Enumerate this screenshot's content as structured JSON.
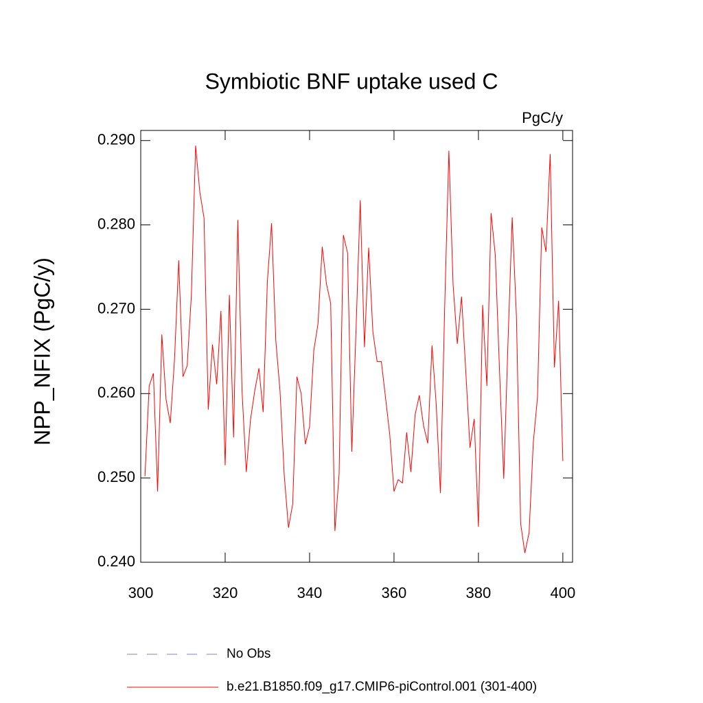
{
  "chart_data": {
    "type": "line",
    "title": "Symbiotic BNF uptake used C",
    "units": "PgC/y",
    "y_label": "NPP_NFIX  (PgC/y)",
    "x": [
      301,
      302,
      303,
      304,
      305,
      306,
      307,
      308,
      309,
      310,
      311,
      312,
      313,
      314,
      315,
      316,
      317,
      318,
      319,
      320,
      321,
      322,
      323,
      324,
      325,
      326,
      327,
      328,
      329,
      330,
      331,
      332,
      333,
      334,
      335,
      336,
      337,
      338,
      339,
      340,
      341,
      342,
      343,
      344,
      345,
      346,
      347,
      348,
      349,
      350,
      351,
      352,
      353,
      354,
      355,
      356,
      357,
      358,
      359,
      360,
      361,
      362,
      363,
      364,
      365,
      366,
      367,
      368,
      369,
      370,
      371,
      372,
      373,
      374,
      375,
      376,
      377,
      378,
      379,
      380,
      381,
      382,
      383,
      384,
      385,
      386,
      387,
      388,
      389,
      390,
      391,
      392,
      393,
      394,
      395,
      396,
      397,
      398,
      399,
      400
    ],
    "series": [
      {
        "name": "b.e21.B1850.f09_g17.CMIP6-piControl.001 (301-400)",
        "color": "#ff0000",
        "values": [
          0.2502,
          0.2609,
          0.2624,
          0.2484,
          0.267,
          0.2593,
          0.2565,
          0.264,
          0.2758,
          0.262,
          0.2633,
          0.2717,
          0.2894,
          0.2839,
          0.2808,
          0.2581,
          0.2658,
          0.2611,
          0.2698,
          0.2515,
          0.2717,
          0.2548,
          0.2806,
          0.2603,
          0.2507,
          0.2569,
          0.2603,
          0.263,
          0.2578,
          0.2733,
          0.2802,
          0.2663,
          0.2603,
          0.2503,
          0.2441,
          0.2469,
          0.262,
          0.26,
          0.254,
          0.2561,
          0.2651,
          0.2683,
          0.2774,
          0.273,
          0.2707,
          0.2437,
          0.2505,
          0.2788,
          0.2767,
          0.2531,
          0.2675,
          0.2829,
          0.2655,
          0.2773,
          0.2673,
          0.2638,
          0.2638,
          0.2595,
          0.2551,
          0.2484,
          0.2498,
          0.2494,
          0.2554,
          0.2507,
          0.2575,
          0.2598,
          0.2562,
          0.2541,
          0.2657,
          0.2587,
          0.2482,
          0.2701,
          0.2888,
          0.2729,
          0.2659,
          0.2715,
          0.2627,
          0.2536,
          0.257,
          0.2442,
          0.2705,
          0.2609,
          0.2814,
          0.2764,
          0.2627,
          0.2499,
          0.266,
          0.2809,
          0.2692,
          0.2446,
          0.2411,
          0.2435,
          0.2542,
          0.2596,
          0.2797,
          0.2768,
          0.2884,
          0.2631,
          0.271,
          0.252
        ]
      }
    ],
    "legend_extra": [
      {
        "name": "No Obs",
        "color": "#8080c0",
        "dash": true
      }
    ],
    "xlim": [
      300,
      402.3
    ],
    "xticks": [
      300,
      320,
      340,
      360,
      380,
      400
    ],
    "ylim": [
      0.24,
      0.2912
    ],
    "yticks": [
      {
        "value": 0.24,
        "label": "0.240"
      },
      {
        "value": 0.25,
        "label": "0.250"
      },
      {
        "value": 0.26,
        "label": "0.260"
      },
      {
        "value": 0.27,
        "label": "0.270"
      },
      {
        "value": 0.28,
        "label": "0.280"
      },
      {
        "value": 0.29,
        "label": "0.290"
      }
    ]
  }
}
